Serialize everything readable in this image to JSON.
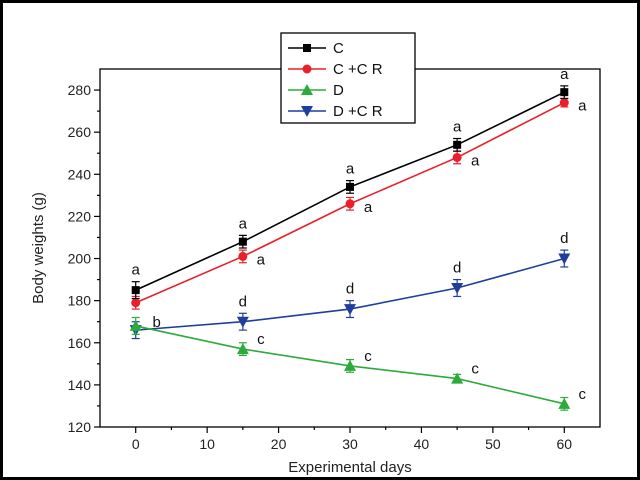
{
  "chart_data": {
    "type": "line",
    "xlabel": "Experimental days",
    "ylabel": "Body weights (g)",
    "xlim": [
      -5,
      65
    ],
    "ylim": [
      120,
      290
    ],
    "x_ticks": [
      "0",
      "10",
      "20",
      "30",
      "40",
      "50",
      "60"
    ],
    "y_ticks": [
      "120",
      "140",
      "160",
      "180",
      "200",
      "220",
      "240",
      "260",
      "280"
    ],
    "x_tick_values": [
      0,
      10,
      20,
      30,
      40,
      50,
      60
    ],
    "y_tick_values": [
      120,
      140,
      160,
      180,
      200,
      220,
      240,
      260,
      280
    ],
    "x": [
      0,
      15,
      30,
      45,
      60
    ],
    "legend_position": "top-center",
    "series": [
      {
        "name": "C",
        "color": "#000000",
        "marker": "square",
        "values": [
          185,
          208,
          234,
          254,
          279
        ],
        "errors": [
          4,
          3,
          3,
          3,
          3
        ],
        "annotations": [
          "a",
          "a",
          "a",
          "a",
          "a"
        ],
        "annotation_side": "above"
      },
      {
        "name": "C +C R",
        "color": "#e8202a",
        "marker": "diamond",
        "values": [
          179,
          201,
          226,
          248,
          274
        ],
        "errors": [
          3,
          3,
          3,
          3,
          2
        ],
        "annotations": [
          "",
          "a",
          "a",
          "a",
          "a"
        ],
        "annotation_side": "right"
      },
      {
        "name": "D",
        "color": "#2cab3a",
        "marker": "triangle-up",
        "values": [
          168,
          157,
          149,
          143,
          131
        ],
        "errors": [
          4,
          3,
          3,
          2,
          3
        ],
        "annotations": [
          "",
          "c",
          "c",
          "c",
          "c"
        ],
        "annotation_side": "right-above"
      },
      {
        "name": "D +C R",
        "color": "#1f3f9a",
        "marker": "triangle-down",
        "values": [
          166,
          170,
          176,
          186,
          200
        ],
        "errors": [
          4,
          4,
          4,
          4,
          4
        ],
        "annotations": [
          "b",
          "d",
          "d",
          "d",
          "d"
        ],
        "annotation_side": "above"
      }
    ]
  }
}
